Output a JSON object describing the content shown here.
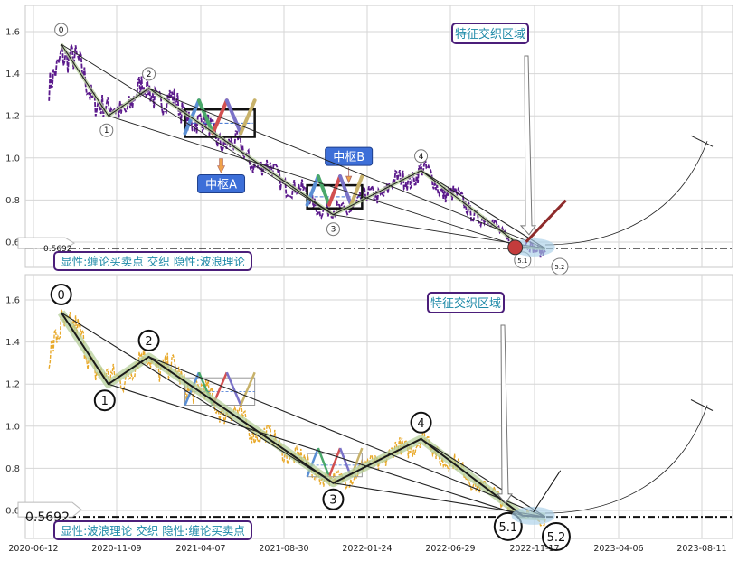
{
  "chart_data": [
    {
      "type": "line",
      "panel": "top",
      "ylim": [
        0.47,
        1.73
      ],
      "yticks": [
        0.6,
        0.8,
        1.0,
        1.2,
        1.4,
        1.6
      ],
      "x_dates": [
        "2020-06-12",
        "2020-11-09",
        "2021-04-07",
        "2021-08-30",
        "2022-01-24",
        "2022-06-29",
        "2022-11-17",
        "2023-04-06",
        "2023-08-11"
      ],
      "grid": true,
      "ref_line": {
        "value": 0.5692,
        "label": "0.5692"
      },
      "price_color": "#5b1a8c",
      "wave_points": [
        {
          "label": "0",
          "date": "2020-08-01",
          "value": 1.54
        },
        {
          "label": "1",
          "date": "2020-10-25",
          "value": 1.2
        },
        {
          "label": "2",
          "date": "2021-01-05",
          "value": 1.33
        },
        {
          "label": "3",
          "date": "2021-11-25",
          "value": 0.73
        },
        {
          "label": "4",
          "date": "2022-05-05",
          "value": 0.94
        },
        {
          "label": "5.1",
          "date": "2022-10-28",
          "value": 0.575
        },
        {
          "label": "5.2",
          "date": "2022-12-05",
          "value": 0.57
        }
      ],
      "pivots": [
        {
          "label": "中枢A",
          "start": "2021-03-10",
          "end": "2021-07-10",
          "low": 1.1,
          "high": 1.23
        },
        {
          "label": "中枢B",
          "start": "2021-10-10",
          "end": "2022-01-15",
          "low": 0.76,
          "high": 0.87
        }
      ],
      "annotation": "特征交织区域",
      "legend": "显性:缠论买卖点 交织 隐性:波浪理论"
    },
    {
      "type": "line",
      "panel": "bottom",
      "ylim": [
        0.47,
        1.73
      ],
      "yticks": [
        0.6,
        0.8,
        1.0,
        1.2,
        1.4,
        1.6
      ],
      "x_dates": [
        "2020-06-12",
        "2020-11-09",
        "2021-04-07",
        "2021-08-30",
        "2022-01-24",
        "2022-06-29",
        "2022-11-17",
        "2023-04-06",
        "2023-08-11"
      ],
      "grid": true,
      "ref_line": {
        "value": 0.5692,
        "label": "0.5692"
      },
      "price_color": "#e8a92a",
      "wave_points": [
        {
          "label": "0",
          "date": "2020-08-01",
          "value": 1.54
        },
        {
          "label": "1",
          "date": "2020-10-25",
          "value": 1.2
        },
        {
          "label": "2",
          "date": "2021-01-05",
          "value": 1.33
        },
        {
          "label": "3",
          "date": "2021-11-25",
          "value": 0.73
        },
        {
          "label": "4",
          "date": "2022-05-05",
          "value": 0.94
        },
        {
          "label": "5.1",
          "date": "2022-10-28",
          "value": 0.575
        },
        {
          "label": "5.2",
          "date": "2022-12-05",
          "value": 0.57
        }
      ],
      "annotation": "特征交织区域",
      "legend": "显性:波浪理论 交织 隐性:缠论买卖点"
    }
  ]
}
